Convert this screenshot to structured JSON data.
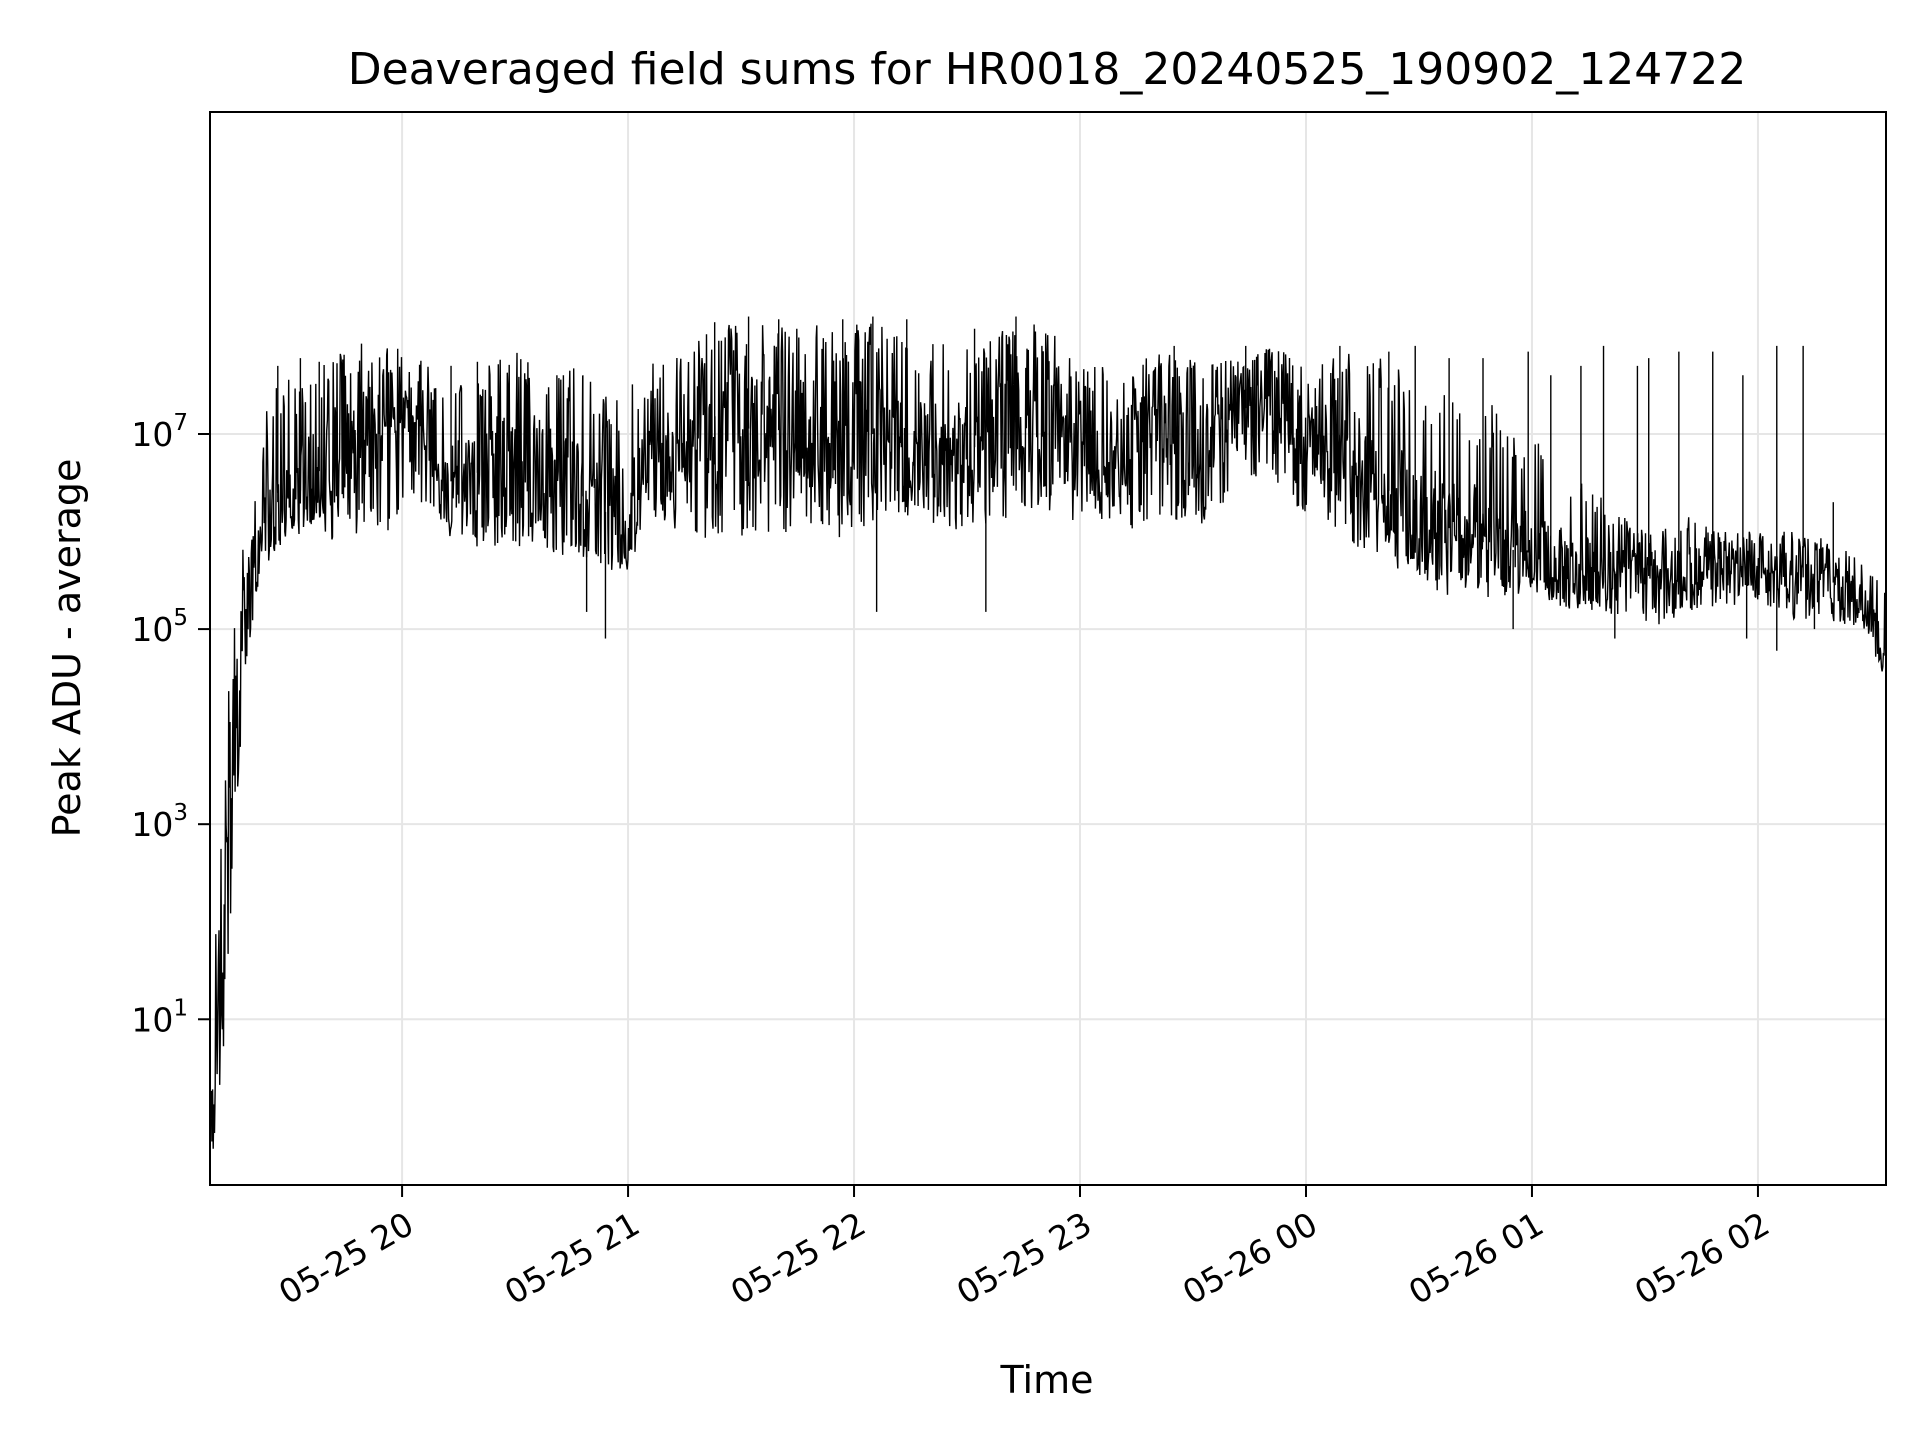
{
  "chart_data": {
    "type": "line",
    "title": "Deaveraged field sums for HR0018_20240525_190902_124722",
    "xlabel": "Time",
    "ylabel": "Peak ADU - average",
    "x_range": [
      "2024-05-25 19:09",
      "2024-05-26 02:34"
    ],
    "ylim": [
      0.2,
      20000000000
    ],
    "yscale": "log",
    "grid": true,
    "line_color": "#000000",
    "grid_color": "#e6e6e6",
    "x_ticks": [
      {
        "t": "2024-05-25 20:00",
        "label": "05-25 20"
      },
      {
        "t": "2024-05-25 21:00",
        "label": "05-25 21"
      },
      {
        "t": "2024-05-25 22:00",
        "label": "05-25 22"
      },
      {
        "t": "2024-05-25 23:00",
        "label": "05-25 23"
      },
      {
        "t": "2024-05-26 00:00",
        "label": "05-26 00"
      },
      {
        "t": "2024-05-26 01:00",
        "label": "05-26 01"
      },
      {
        "t": "2024-05-26 02:00",
        "label": "05-26 02"
      }
    ],
    "y_ticks": [
      {
        "value": 10,
        "base": "10",
        "exp": "1"
      },
      {
        "value": 1000,
        "base": "10",
        "exp": "3"
      },
      {
        "value": 100000,
        "base": "10",
        "exp": "5"
      },
      {
        "value": 10000000,
        "base": "10",
        "exp": "7"
      }
    ],
    "envelope": {
      "x": [
        "2024-05-25 19:09",
        "2024-05-25 19:12",
        "2024-05-25 19:15",
        "2024-05-25 19:18",
        "2024-05-25 19:22",
        "2024-05-25 19:25",
        "2024-05-25 19:30",
        "2024-05-25 19:40",
        "2024-05-25 19:50",
        "2024-05-25 19:55",
        "2024-05-25 20:05",
        "2024-05-25 20:10",
        "2024-05-25 20:20",
        "2024-05-25 20:30",
        "2024-05-25 20:40",
        "2024-05-25 20:50",
        "2024-05-25 20:55",
        "2024-05-25 21:00",
        "2024-05-25 21:05",
        "2024-05-25 21:15",
        "2024-05-25 21:25",
        "2024-05-25 21:35",
        "2024-05-25 21:45",
        "2024-05-25 21:55",
        "2024-05-25 22:05",
        "2024-05-25 22:15",
        "2024-05-25 22:25",
        "2024-05-25 22:35",
        "2024-05-25 22:45",
        "2024-05-25 22:55",
        "2024-05-25 23:05",
        "2024-05-25 23:15",
        "2024-05-25 23:25",
        "2024-05-25 23:30",
        "2024-05-25 23:40",
        "2024-05-25 23:50",
        "2024-05-26 00:00",
        "2024-05-26 00:10",
        "2024-05-26 00:20",
        "2024-05-26 00:30",
        "2024-05-26 00:40",
        "2024-05-26 00:50",
        "2024-05-26 01:00",
        "2024-05-26 01:10",
        "2024-05-26 01:20",
        "2024-05-26 01:30",
        "2024-05-26 01:40",
        "2024-05-26 01:50",
        "2024-05-26 02:00",
        "2024-05-26 02:10",
        "2024-05-26 02:20",
        "2024-05-26 02:28",
        "2024-05-26 02:34"
      ],
      "high": [
        3,
        2000,
        100000,
        1000000,
        5000000,
        30000000,
        40000000,
        60000000,
        90000000,
        90000000,
        80000000,
        30000000,
        50000000,
        70000000,
        60000000,
        40000000,
        30000000,
        30000000,
        50000000,
        80000000,
        150000000,
        150000000,
        120000000,
        140000000,
        150000000,
        110000000,
        80000000,
        100000000,
        150000000,
        100000000,
        50000000,
        70000000,
        70000000,
        60000000,
        60000000,
        80000000,
        70000000,
        70000000,
        60000000,
        40000000,
        30000000,
        20000000,
        10000000,
        4000000,
        2000000,
        1000000,
        1500000,
        1000000,
        1000000,
        1000000,
        800000,
        500000,
        300000
      ],
      "low": [
        0.2,
        1,
        100,
        30000,
        300000,
        500000,
        1000000,
        800000,
        1000000,
        900000,
        1000000,
        900000,
        700000,
        700000,
        600000,
        500000,
        400000,
        400000,
        900000,
        1100000,
        700000,
        900000,
        1000000,
        800000,
        1200000,
        1400000,
        1000000,
        1200000,
        1400000,
        1300000,
        1200000,
        1000000,
        1300000,
        1000000,
        2000000,
        4000000,
        1200000,
        800000,
        500000,
        300000,
        200000,
        200000,
        250000,
        150000,
        150000,
        100000,
        120000,
        150000,
        200000,
        120000,
        120000,
        100000,
        30000
      ],
      "dense": [
        1,
        30,
        2000,
        200000,
        600000,
        2000000,
        2000000,
        5000000,
        10000000,
        15000000,
        12000000,
        3000000,
        4000000,
        5000000,
        4000000,
        2000000,
        1500000,
        1500000,
        4000000,
        8000000,
        10000000,
        12000000,
        10000000,
        9000000,
        10000000,
        8000000,
        6000000,
        8000000,
        15000000,
        10000000,
        6000000,
        10000000,
        12000000,
        8000000,
        15000000,
        25000000,
        12000000,
        6000000,
        3000000,
        1500000,
        1000000,
        700000,
        600000,
        400000,
        400000,
        350000,
        350000,
        400000,
        450000,
        350000,
        300000,
        200000,
        50000
      ]
    },
    "spikes": [
      {
        "t": "2024-05-25 19:27",
        "v": 50000000
      },
      {
        "t": "2024-05-25 19:33",
        "v": 60000000
      },
      {
        "t": "2024-05-25 19:38",
        "v": 55000000
      },
      {
        "t": "2024-05-25 20:13",
        "v": 50000000
      },
      {
        "t": "2024-05-25 20:20",
        "v": 55000000
      },
      {
        "t": "2024-05-25 20:48",
        "v": 40000000
      },
      {
        "t": "2024-05-25 21:23",
        "v": 140000000
      },
      {
        "t": "2024-05-25 21:32",
        "v": 160000000
      },
      {
        "t": "2024-05-25 21:40",
        "v": 150000000
      },
      {
        "t": "2024-05-25 21:57",
        "v": 150000000
      },
      {
        "t": "2024-05-25 22:05",
        "v": 160000000
      },
      {
        "t": "2024-05-25 22:14",
        "v": 150000000
      },
      {
        "t": "2024-05-25 22:32",
        "v": 120000000
      },
      {
        "t": "2024-05-25 22:43",
        "v": 160000000
      },
      {
        "t": "2024-05-25 23:25",
        "v": 80000000
      },
      {
        "t": "2024-05-25 23:44",
        "v": 80000000
      },
      {
        "t": "2024-05-26 00:09",
        "v": 80000000
      },
      {
        "t": "2024-05-26 00:22",
        "v": 70000000
      },
      {
        "t": "2024-05-26 00:29",
        "v": 80000000
      },
      {
        "t": "2024-05-26 00:38",
        "v": 60000000
      },
      {
        "t": "2024-05-26 00:47",
        "v": 60000000
      },
      {
        "t": "2024-05-26 00:59",
        "v": 70000000
      },
      {
        "t": "2024-05-26 01:05",
        "v": 40000000
      },
      {
        "t": "2024-05-26 01:13",
        "v": 50000000
      },
      {
        "t": "2024-05-26 01:19",
        "v": 80000000
      },
      {
        "t": "2024-05-26 01:28",
        "v": 50000000
      },
      {
        "t": "2024-05-26 01:31",
        "v": 60000000
      },
      {
        "t": "2024-05-26 01:39",
        "v": 70000000
      },
      {
        "t": "2024-05-26 01:48",
        "v": 70000000
      },
      {
        "t": "2024-05-26 01:56",
        "v": 40000000
      },
      {
        "t": "2024-05-26 02:05",
        "v": 80000000
      },
      {
        "t": "2024-05-26 02:12",
        "v": 80000000
      },
      {
        "t": "2024-05-26 02:20",
        "v": 2000000
      }
    ],
    "dips": [
      {
        "t": "2024-05-25 20:54",
        "v": 80000
      },
      {
        "t": "2024-05-25 20:49",
        "v": 150000
      },
      {
        "t": "2024-05-25 22:35",
        "v": 150000
      },
      {
        "t": "2024-05-25 22:06",
        "v": 150000
      },
      {
        "t": "2024-05-26 00:55",
        "v": 100000
      },
      {
        "t": "2024-05-26 01:22",
        "v": 80000
      },
      {
        "t": "2024-05-26 01:57",
        "v": 80000
      },
      {
        "t": "2024-05-26 02:05",
        "v": 60000
      },
      {
        "t": "2024-05-26 02:15",
        "v": 100000
      }
    ]
  }
}
